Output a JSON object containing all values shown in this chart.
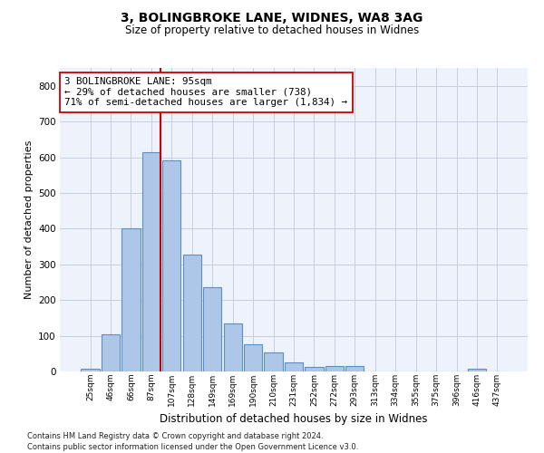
{
  "title1": "3, BOLINGBROKE LANE, WIDNES, WA8 3AG",
  "title2": "Size of property relative to detached houses in Widnes",
  "xlabel": "Distribution of detached houses by size in Widnes",
  "ylabel": "Number of detached properties",
  "categories": [
    "25sqm",
    "46sqm",
    "66sqm",
    "87sqm",
    "107sqm",
    "128sqm",
    "149sqm",
    "169sqm",
    "190sqm",
    "210sqm",
    "231sqm",
    "252sqm",
    "272sqm",
    "293sqm",
    "313sqm",
    "334sqm",
    "355sqm",
    "375sqm",
    "396sqm",
    "416sqm",
    "437sqm"
  ],
  "values": [
    7,
    105,
    400,
    615,
    590,
    328,
    235,
    135,
    77,
    53,
    25,
    12,
    15,
    15,
    1,
    0,
    0,
    0,
    0,
    7,
    0
  ],
  "bar_color": "#aec6e8",
  "bar_edge_color": "#5a8fc2",
  "vline_color": "#cc0000",
  "vline_x": 3.43,
  "annotation_text": "3 BOLINGBROKE LANE: 95sqm\n← 29% of detached houses are smaller (738)\n71% of semi-detached houses are larger (1,834) →",
  "annotation_box_color": "#ffffff",
  "annotation_box_edge_color": "#cc0000",
  "ylim": [
    0,
    850
  ],
  "yticks": [
    0,
    100,
    200,
    300,
    400,
    500,
    600,
    700,
    800
  ],
  "plot_bg_color": "#eef2fa",
  "fig_bg_color": "#ffffff",
  "grid_color": "#c5cedf",
  "footer1": "Contains HM Land Registry data © Crown copyright and database right 2024.",
  "footer2": "Contains public sector information licensed under the Open Government Licence v3.0."
}
